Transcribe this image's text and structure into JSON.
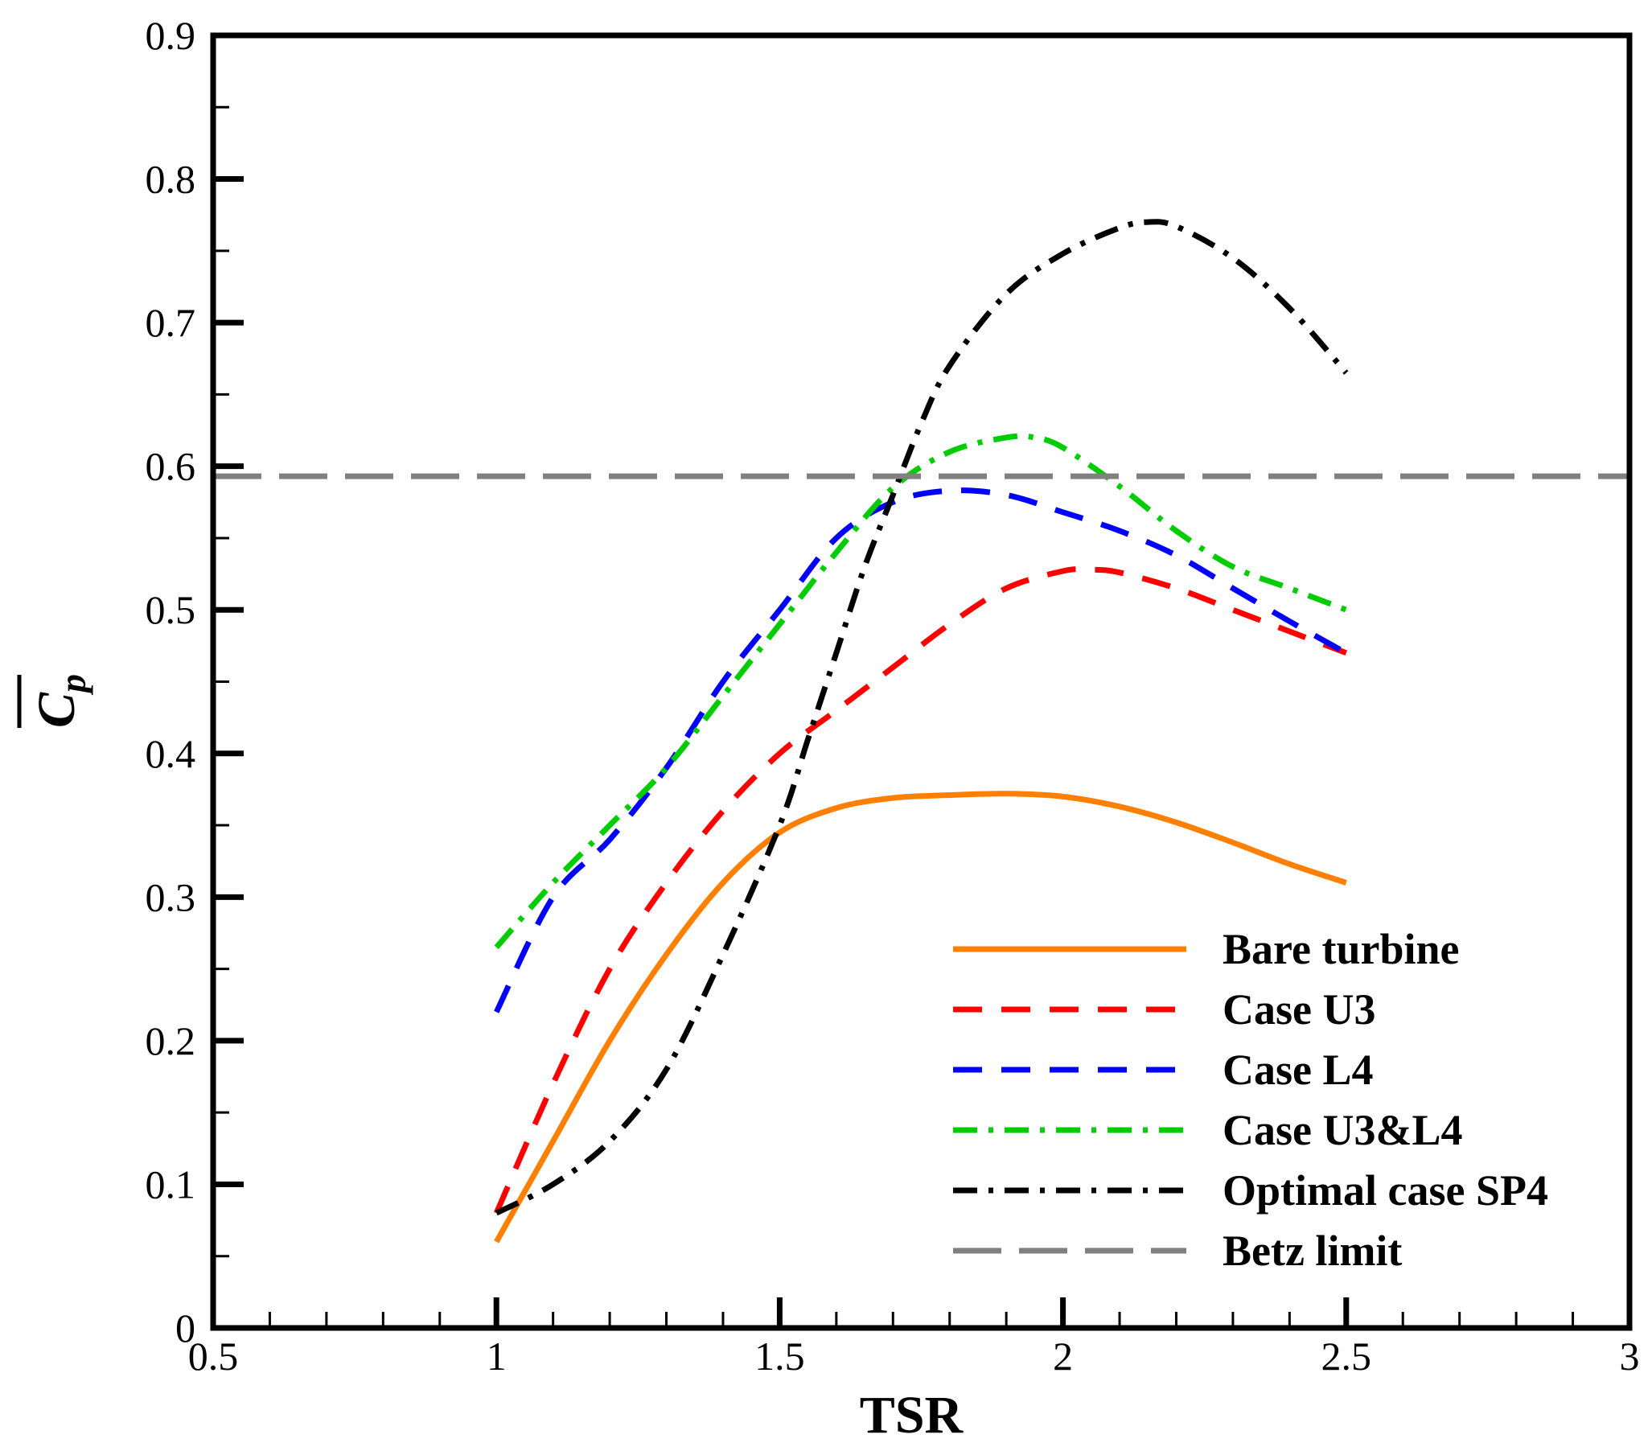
{
  "chart_data": {
    "type": "line",
    "title": "",
    "xlabel": "TSR",
    "ylabel_main": "C",
    "ylabel_sub": "p",
    "xlim": [
      0.5,
      3
    ],
    "ylim": [
      0,
      0.9
    ],
    "x_ticks": [
      0.5,
      1,
      1.5,
      2,
      2.5,
      3
    ],
    "x_tick_labels": [
      "0.5",
      "1",
      "1.5",
      "2",
      "2.5",
      "3"
    ],
    "y_ticks": [
      0,
      0.1,
      0.2,
      0.3,
      0.4,
      0.5,
      0.6,
      0.7,
      0.8,
      0.9
    ],
    "y_tick_labels": [
      "0",
      "0.1",
      "0.2",
      "0.3",
      "0.4",
      "0.5",
      "0.6",
      "0.7",
      "0.8",
      "0.9"
    ],
    "grid": false,
    "legend_position": "bottom-right",
    "series": [
      {
        "name": "Bare turbine",
        "color": "#FF8000",
        "style": "solid",
        "x": [
          1.0,
          1.1,
          1.2,
          1.3,
          1.4,
          1.5,
          1.6,
          1.7,
          1.8,
          1.9,
          2.0,
          2.1,
          2.2,
          2.3,
          2.4,
          2.5
        ],
        "y": [
          0.06,
          0.13,
          0.2,
          0.26,
          0.31,
          0.345,
          0.362,
          0.369,
          0.371,
          0.372,
          0.37,
          0.363,
          0.352,
          0.338,
          0.323,
          0.31
        ]
      },
      {
        "name": "Case U3",
        "color": "#FF0000",
        "style": "dash",
        "x": [
          1.0,
          1.1,
          1.2,
          1.3,
          1.4,
          1.5,
          1.6,
          1.7,
          1.8,
          1.9,
          2.0,
          2.05,
          2.1,
          2.2,
          2.3,
          2.4,
          2.5
        ],
        "y": [
          0.08,
          0.17,
          0.25,
          0.31,
          0.36,
          0.4,
          0.43,
          0.46,
          0.49,
          0.515,
          0.527,
          0.528,
          0.526,
          0.515,
          0.5,
          0.485,
          0.47
        ]
      },
      {
        "name": "Case L4",
        "color": "#0000FF",
        "style": "dash",
        "x": [
          1.0,
          1.1,
          1.2,
          1.3,
          1.4,
          1.5,
          1.6,
          1.7,
          1.8,
          1.9,
          2.0,
          2.1,
          2.2,
          2.3,
          2.4,
          2.5
        ],
        "y": [
          0.22,
          0.3,
          0.34,
          0.39,
          0.45,
          0.5,
          0.55,
          0.575,
          0.583,
          0.58,
          0.568,
          0.555,
          0.538,
          0.515,
          0.492,
          0.47
        ]
      },
      {
        "name": "Case U3&L4",
        "color": "#00CC00",
        "style": "dashdot",
        "x": [
          1.0,
          1.1,
          1.2,
          1.3,
          1.4,
          1.5,
          1.6,
          1.7,
          1.8,
          1.9,
          1.95,
          2.0,
          2.1,
          2.2,
          2.3,
          2.4,
          2.5
        ],
        "y": [
          0.265,
          0.31,
          0.35,
          0.39,
          0.44,
          0.49,
          0.54,
          0.585,
          0.61,
          0.62,
          0.62,
          0.613,
          0.586,
          0.555,
          0.53,
          0.515,
          0.5
        ]
      },
      {
        "name": "Optimal case SP4",
        "color": "#000000",
        "style": "dashdot",
        "x": [
          1.0,
          1.1,
          1.2,
          1.3,
          1.4,
          1.5,
          1.55,
          1.6,
          1.65,
          1.7,
          1.75,
          1.8,
          1.9,
          2.0,
          2.1,
          2.15,
          2.2,
          2.3,
          2.4,
          2.5
        ],
        "y": [
          0.08,
          0.1,
          0.13,
          0.18,
          0.26,
          0.35,
          0.41,
          0.47,
          0.53,
          0.58,
          0.63,
          0.67,
          0.72,
          0.748,
          0.766,
          0.77,
          0.767,
          0.745,
          0.71,
          0.665
        ]
      },
      {
        "name": "Betz limit",
        "color": "#808080",
        "style": "longdash",
        "x": [
          0.5,
          3.0
        ],
        "y": [
          0.593,
          0.593
        ]
      }
    ]
  }
}
